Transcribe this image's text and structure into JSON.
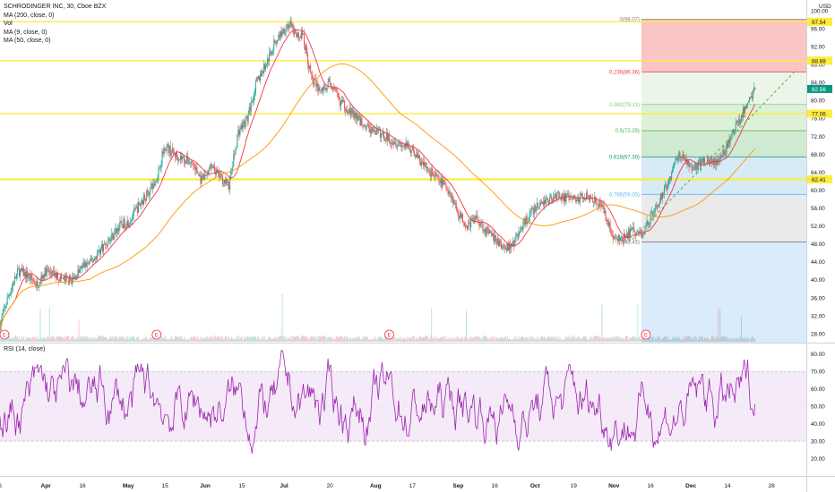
{
  "header": {
    "symbol_line": "SCHRODINGER INC, 30, Cboe BZX",
    "indicators": [
      "MA (200, close, 0)",
      "Vol",
      "MA (9, close, 0)",
      "MA (50, close, 0)"
    ],
    "currency": "USD"
  },
  "rsi": {
    "label": "RSI (14, close)",
    "upper": 70,
    "lower": 30,
    "ylim": [
      10,
      85
    ]
  },
  "colors": {
    "candle_up": "#26a69a",
    "candle_down": "#ef5350",
    "ma_fast": "#f23645",
    "ma_slow": "#ff9800",
    "rsi_line": "#9c27b0",
    "rsi_band": "#f3e5f5",
    "hline": "#ffeb3b",
    "trend": "#4caf50"
  },
  "chart_data": {
    "type": "candlestick",
    "price_axis": {
      "ylim": [
        26,
        102
      ],
      "ticks": [
        100.0,
        96.0,
        92.0,
        88.0,
        84.0,
        80.0,
        76.0,
        72.0,
        68.0,
        64.0,
        60.0,
        56.0,
        52.0,
        48.0,
        44.0,
        40.0,
        36.0,
        32.0,
        28.0
      ],
      "labels": [
        "100.00",
        "96.00",
        "92.00",
        "88.00",
        "84.00",
        "80.00",
        "76.00",
        "72.00",
        "68.00",
        "64.00",
        "60.00",
        "56.00",
        "52.00",
        "48.00",
        "44.00",
        "40.00",
        "36.00",
        "32.00",
        "28.00"
      ]
    },
    "rsi_axis": {
      "ticks": [
        80,
        70,
        60,
        50,
        40,
        30,
        20
      ],
      "labels": [
        "80.00",
        "70.00",
        "60.00",
        "50.00",
        "40.00",
        "30.00",
        "20.00"
      ]
    },
    "time_axis": {
      "labels": [
        "6",
        "Apr",
        "16",
        "May",
        "15",
        "Jun",
        "15",
        "Jul",
        "20",
        "Aug",
        "17",
        "Sep",
        "16",
        "Oct",
        "19",
        "Nov",
        "16",
        "Dec",
        "14",
        "28"
      ],
      "positions": [
        0,
        25,
        45,
        70,
        90,
        112,
        132,
        155,
        180,
        205,
        225,
        250,
        270,
        292,
        313,
        335,
        355,
        377,
        397,
        421
      ]
    },
    "horizontal_levels": [
      {
        "price": 97.54,
        "label": "97.54"
      },
      {
        "price": 88.88,
        "label": "88.88"
      },
      {
        "price": 77.06,
        "label": "77.06"
      },
      {
        "price": 62.41,
        "label": "62.41"
      }
    ],
    "last_price": {
      "price": 82.56,
      "label": "82.56"
    },
    "fibonacci": {
      "x_start": 350,
      "x_end": 440,
      "levels": [
        {
          "ratio": 0,
          "price": 98.07,
          "label": "0(98.07)"
        },
        {
          "ratio": 0.236,
          "price": 86.36,
          "label": "0.236(86.36)"
        },
        {
          "ratio": 0.382,
          "price": 79.11,
          "label": "0.382(79.11)"
        },
        {
          "ratio": 0.5,
          "price": 73.25,
          "label": "0.5(73.25)"
        },
        {
          "ratio": 0.618,
          "price": 67.39,
          "label": "0.618(67.39)"
        },
        {
          "ratio": 0.786,
          "price": 59.05,
          "label": "0.786(59.05)"
        },
        {
          "ratio": 1,
          "price": 48.43,
          "label": "1(48.43)"
        }
      ]
    },
    "price_path": [
      [
        0,
        30
      ],
      [
        5,
        37
      ],
      [
        10,
        42
      ],
      [
        15,
        41
      ],
      [
        20,
        39
      ],
      [
        25,
        42
      ],
      [
        30,
        41
      ],
      [
        35,
        40
      ],
      [
        40,
        40
      ],
      [
        45,
        43
      ],
      [
        50,
        44
      ],
      [
        55,
        47
      ],
      [
        60,
        49
      ],
      [
        65,
        52
      ],
      [
        70,
        53
      ],
      [
        75,
        56
      ],
      [
        80,
        59
      ],
      [
        85,
        62
      ],
      [
        90,
        70
      ],
      [
        95,
        68
      ],
      [
        100,
        67
      ],
      [
        105,
        66
      ],
      [
        110,
        62
      ],
      [
        115,
        65
      ],
      [
        120,
        63
      ],
      [
        125,
        61
      ],
      [
        130,
        73
      ],
      [
        135,
        76
      ],
      [
        140,
        84
      ],
      [
        145,
        88
      ],
      [
        150,
        93
      ],
      [
        155,
        96
      ],
      [
        158,
        97
      ],
      [
        162,
        94
      ],
      [
        165,
        95
      ],
      [
        170,
        85
      ],
      [
        175,
        82
      ],
      [
        180,
        84
      ],
      [
        185,
        80
      ],
      [
        190,
        78
      ],
      [
        195,
        76
      ],
      [
        200,
        74
      ],
      [
        205,
        73
      ],
      [
        210,
        72
      ],
      [
        215,
        71
      ],
      [
        220,
        70
      ],
      [
        225,
        69
      ],
      [
        230,
        66
      ],
      [
        235,
        64
      ],
      [
        240,
        62
      ],
      [
        245,
        60
      ],
      [
        250,
        55
      ],
      [
        255,
        52
      ],
      [
        260,
        54
      ],
      [
        265,
        51
      ],
      [
        270,
        49
      ],
      [
        275,
        47
      ],
      [
        280,
        48
      ],
      [
        285,
        52
      ],
      [
        290,
        55
      ],
      [
        295,
        57
      ],
      [
        300,
        58
      ],
      [
        305,
        59
      ],
      [
        310,
        58
      ],
      [
        315,
        58
      ],
      [
        320,
        59
      ],
      [
        325,
        58
      ],
      [
        330,
        55
      ],
      [
        335,
        49
      ],
      [
        340,
        49
      ],
      [
        345,
        51
      ],
      [
        350,
        50
      ],
      [
        355,
        54
      ],
      [
        360,
        58
      ],
      [
        365,
        62
      ],
      [
        370,
        68
      ],
      [
        375,
        66
      ],
      [
        380,
        65
      ],
      [
        385,
        67
      ],
      [
        390,
        66
      ],
      [
        395,
        68
      ],
      [
        400,
        73
      ],
      [
        405,
        77
      ],
      [
        410,
        81
      ],
      [
        412,
        82.56
      ]
    ],
    "trend_line": [
      [
        345,
        49
      ],
      [
        435,
        87
      ]
    ],
    "event_markers": [
      0,
      83,
      210,
      350
    ]
  }
}
